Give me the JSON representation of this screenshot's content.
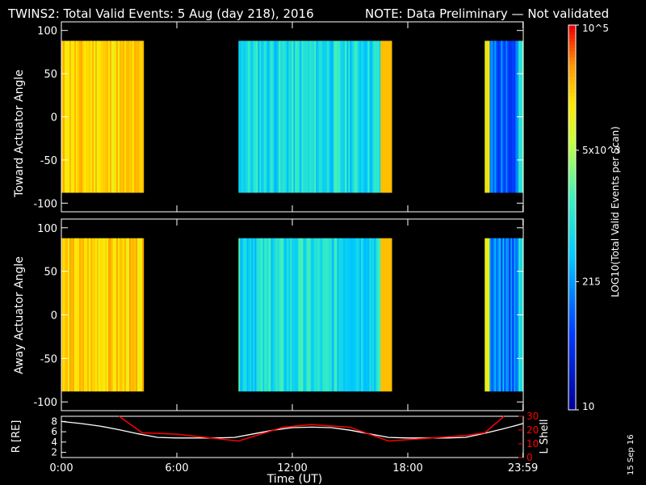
{
  "title": {
    "main": "TWINS2: Total Valid Events:  5 Aug (day 218), 2016",
    "note": "NOTE: Data Preliminary — Not validated",
    "note_color": "#ff0000"
  },
  "date_stamp": "15 Sep 16",
  "colorbar": {
    "label": "LOG10(Total Valid Events per Scan)",
    "ticks": [
      {
        "label": "10",
        "value": 10
      },
      {
        "label": "215",
        "value": 215
      },
      {
        "label": "5x10^3",
        "value": 5000
      },
      {
        "label": "10^5",
        "value": 100000
      }
    ],
    "min": 10,
    "max": 100000
  },
  "time_axis": {
    "label": "Time (UT)",
    "ticks": [
      "0:00",
      "6:00",
      "12:00",
      "18:00",
      "23:59"
    ],
    "tick_hours": [
      0,
      6,
      12,
      18,
      23.983
    ]
  },
  "chart_data": [
    {
      "type": "heatmap",
      "name": "toward",
      "ylabel": "Toward Actuator Angle",
      "ylim": [
        -110,
        110
      ],
      "yticks": [
        100,
        50,
        0,
        -50,
        -100
      ],
      "angle_range": [
        -88,
        88
      ],
      "segments": [
        {
          "start_h": 0.0,
          "end_h": 4.2,
          "level": "high"
        },
        {
          "start_h": 9.2,
          "end_h": 17.1,
          "level": "mid"
        },
        {
          "start_h": 22.0,
          "end_h": 24.0,
          "level": "mixed-low"
        }
      ]
    },
    {
      "type": "heatmap",
      "name": "away",
      "ylabel": "Away Actuator Angle",
      "ylim": [
        -110,
        110
      ],
      "yticks": [
        100,
        50,
        0,
        -50,
        -100
      ],
      "angle_range": [
        -88,
        88
      ],
      "segments": [
        {
          "start_h": 0.0,
          "end_h": 4.2,
          "level": "high"
        },
        {
          "start_h": 9.2,
          "end_h": 17.1,
          "level": "mid"
        },
        {
          "start_h": 22.0,
          "end_h": 24.0,
          "level": "mixed-low"
        }
      ]
    },
    {
      "type": "line",
      "name": "orbit",
      "ylabel": "R [RE]",
      "y2label": "L Shell",
      "ylim": [
        1,
        9
      ],
      "yticks": [
        2,
        4,
        6,
        8
      ],
      "y2lim": [
        0,
        30
      ],
      "y2ticks": [
        0,
        10,
        20,
        30
      ],
      "y2color": "#ff0000",
      "series": [
        {
          "name": "R",
          "color": "#ffffff",
          "x": [
            0,
            1,
            2,
            3,
            4,
            5,
            6,
            7,
            8,
            9,
            10,
            11,
            12,
            13,
            14,
            15,
            16,
            17,
            18,
            19,
            20,
            21,
            22,
            23,
            24
          ],
          "y": [
            8.0,
            7.6,
            7.1,
            6.4,
            5.6,
            4.9,
            4.8,
            4.8,
            4.8,
            4.9,
            5.6,
            6.3,
            6.8,
            6.9,
            6.8,
            6.3,
            5.6,
            4.9,
            4.8,
            4.8,
            4.8,
            4.9,
            5.7,
            6.6,
            7.6
          ]
        },
        {
          "name": "L Shell",
          "color": "#ff0000",
          "x": [
            3.0,
            4.2,
            6,
            9.2,
            11.5,
            13,
            15,
            17.0,
            19,
            21,
            22.0,
            23.0
          ],
          "y": [
            30,
            18,
            17,
            12,
            22,
            24,
            22,
            12,
            14,
            16,
            18,
            30
          ]
        }
      ]
    }
  ]
}
